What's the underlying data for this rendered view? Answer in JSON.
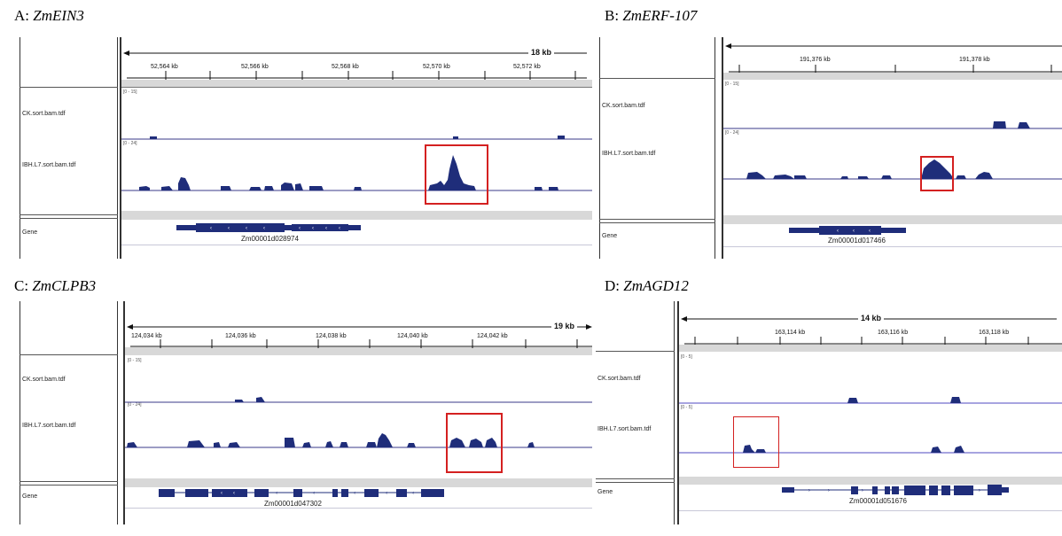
{
  "panels": [
    {
      "letter": "A:",
      "gene": "ZmEIN3",
      "span": "18 kb",
      "ticks": [
        "52,564 kb",
        "52,566 kb",
        "52,568 kb",
        "52,570 kb",
        "52,572 kb"
      ],
      "tracks": [
        {
          "name": "CK.sort.bam.tdf",
          "range": "[0 - 15]"
        },
        {
          "name": "IBH.L7.sort.bam.tdf",
          "range": "[0 - 24]"
        }
      ],
      "gene_track": "Gene",
      "gene_id": "Zm00001d028974"
    },
    {
      "letter": "B:",
      "gene": "ZmERF-107",
      "span": "",
      "ticks": [
        "191,376 kb",
        "191,378 kb"
      ],
      "tracks": [
        {
          "name": "CK.sort.bam.tdf",
          "range": "[0 - 15]"
        },
        {
          "name": "IBH.L7.sort.bam.tdf",
          "range": "[0 - 24]"
        }
      ],
      "gene_track": "Gene",
      "gene_id": "Zm00001d017466"
    },
    {
      "letter": "C:",
      "gene": "ZmCLPB3",
      "span": "19 kb",
      "ticks": [
        "124,034 kb",
        "124,036 kb",
        "124,038 kb",
        "124,040 kb",
        "124,042 kb"
      ],
      "tracks": [
        {
          "name": "CK.sort.bam.tdf",
          "range": "[0 - 15]"
        },
        {
          "name": "IBH.L7.sort.bam.tdf",
          "range": "[0 - 24]"
        }
      ],
      "gene_track": "Gene",
      "gene_id": "Zm00001d047302"
    },
    {
      "letter": "D:",
      "gene": "ZmAGD12",
      "span": "14 kb",
      "ticks": [
        "163,114 kb",
        "163,116 kb",
        "163,118 kb"
      ],
      "tracks": [
        {
          "name": "CK.sort.bam.tdf",
          "range": "[0 - 5]"
        },
        {
          "name": "IBH.L7.sort.bam.tdf",
          "range": "[0 - 5]"
        }
      ],
      "gene_track": "Gene",
      "gene_id": "Zm00001d051676"
    }
  ],
  "colors": {
    "coverage": "#1f2d7a",
    "baseline": "#3a3a8a",
    "light_baseline": "#8a86d6",
    "highlight_box": "#d42020"
  }
}
